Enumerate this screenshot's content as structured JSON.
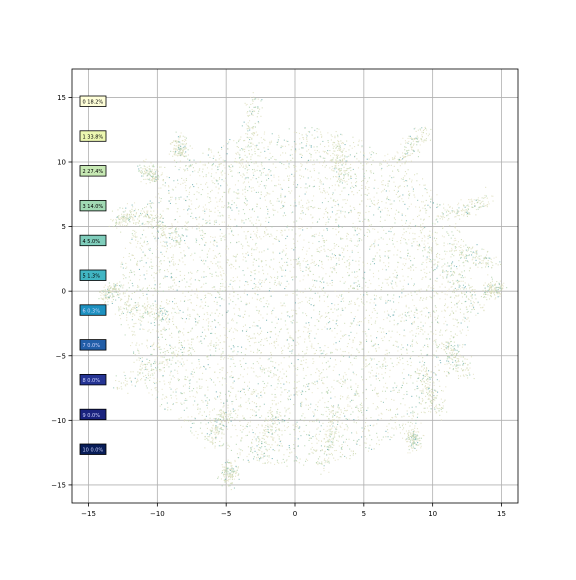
{
  "chart_data": {
    "type": "scatter",
    "title": "",
    "xlabel": "",
    "ylabel": "",
    "xlim": [
      -16.2,
      16.2
    ],
    "ylim": [
      -16.4,
      17.2
    ],
    "xticks": [
      -15,
      -10,
      -5,
      0,
      5,
      10,
      15
    ],
    "yticks": [
      -15,
      -10,
      -5,
      0,
      5,
      10,
      15
    ],
    "xtick_labels": [
      "−15",
      "−10",
      "−5",
      "0",
      "5",
      "10",
      "15"
    ],
    "ytick_labels": [
      "−15",
      "−10",
      "−5",
      "0",
      "5",
      "10",
      "15"
    ],
    "grid": true,
    "legend_placement": "left",
    "point_colors": [
      "#e3e0c2",
      "#d8dbb6",
      "#c9d7ad",
      "#aacfa7",
      "#7fb9ae",
      "#5ea6ab"
    ],
    "legend": [
      {
        "label": "0 18.2%",
        "color": "#ffffd9"
      },
      {
        "label": "1 33.8%",
        "color": "#edf8b1"
      },
      {
        "label": "2 27.4%",
        "color": "#c7e9b4"
      },
      {
        "label": "3 14.0%",
        "color": "#a1dab4"
      },
      {
        "label": "4 5.0%",
        "color": "#7fcdbb"
      },
      {
        "label": "5 1.3%",
        "color": "#41b6c4"
      },
      {
        "label": "6 0.3%",
        "color": "#1d91c0"
      },
      {
        "label": "7 0.0%",
        "color": "#225ea8"
      },
      {
        "label": "8 0.0%",
        "color": "#253494"
      },
      {
        "label": "9 0.0%",
        "color": "#1a237e"
      },
      {
        "label": "10 0.0%",
        "color": "#081d58"
      }
    ]
  }
}
